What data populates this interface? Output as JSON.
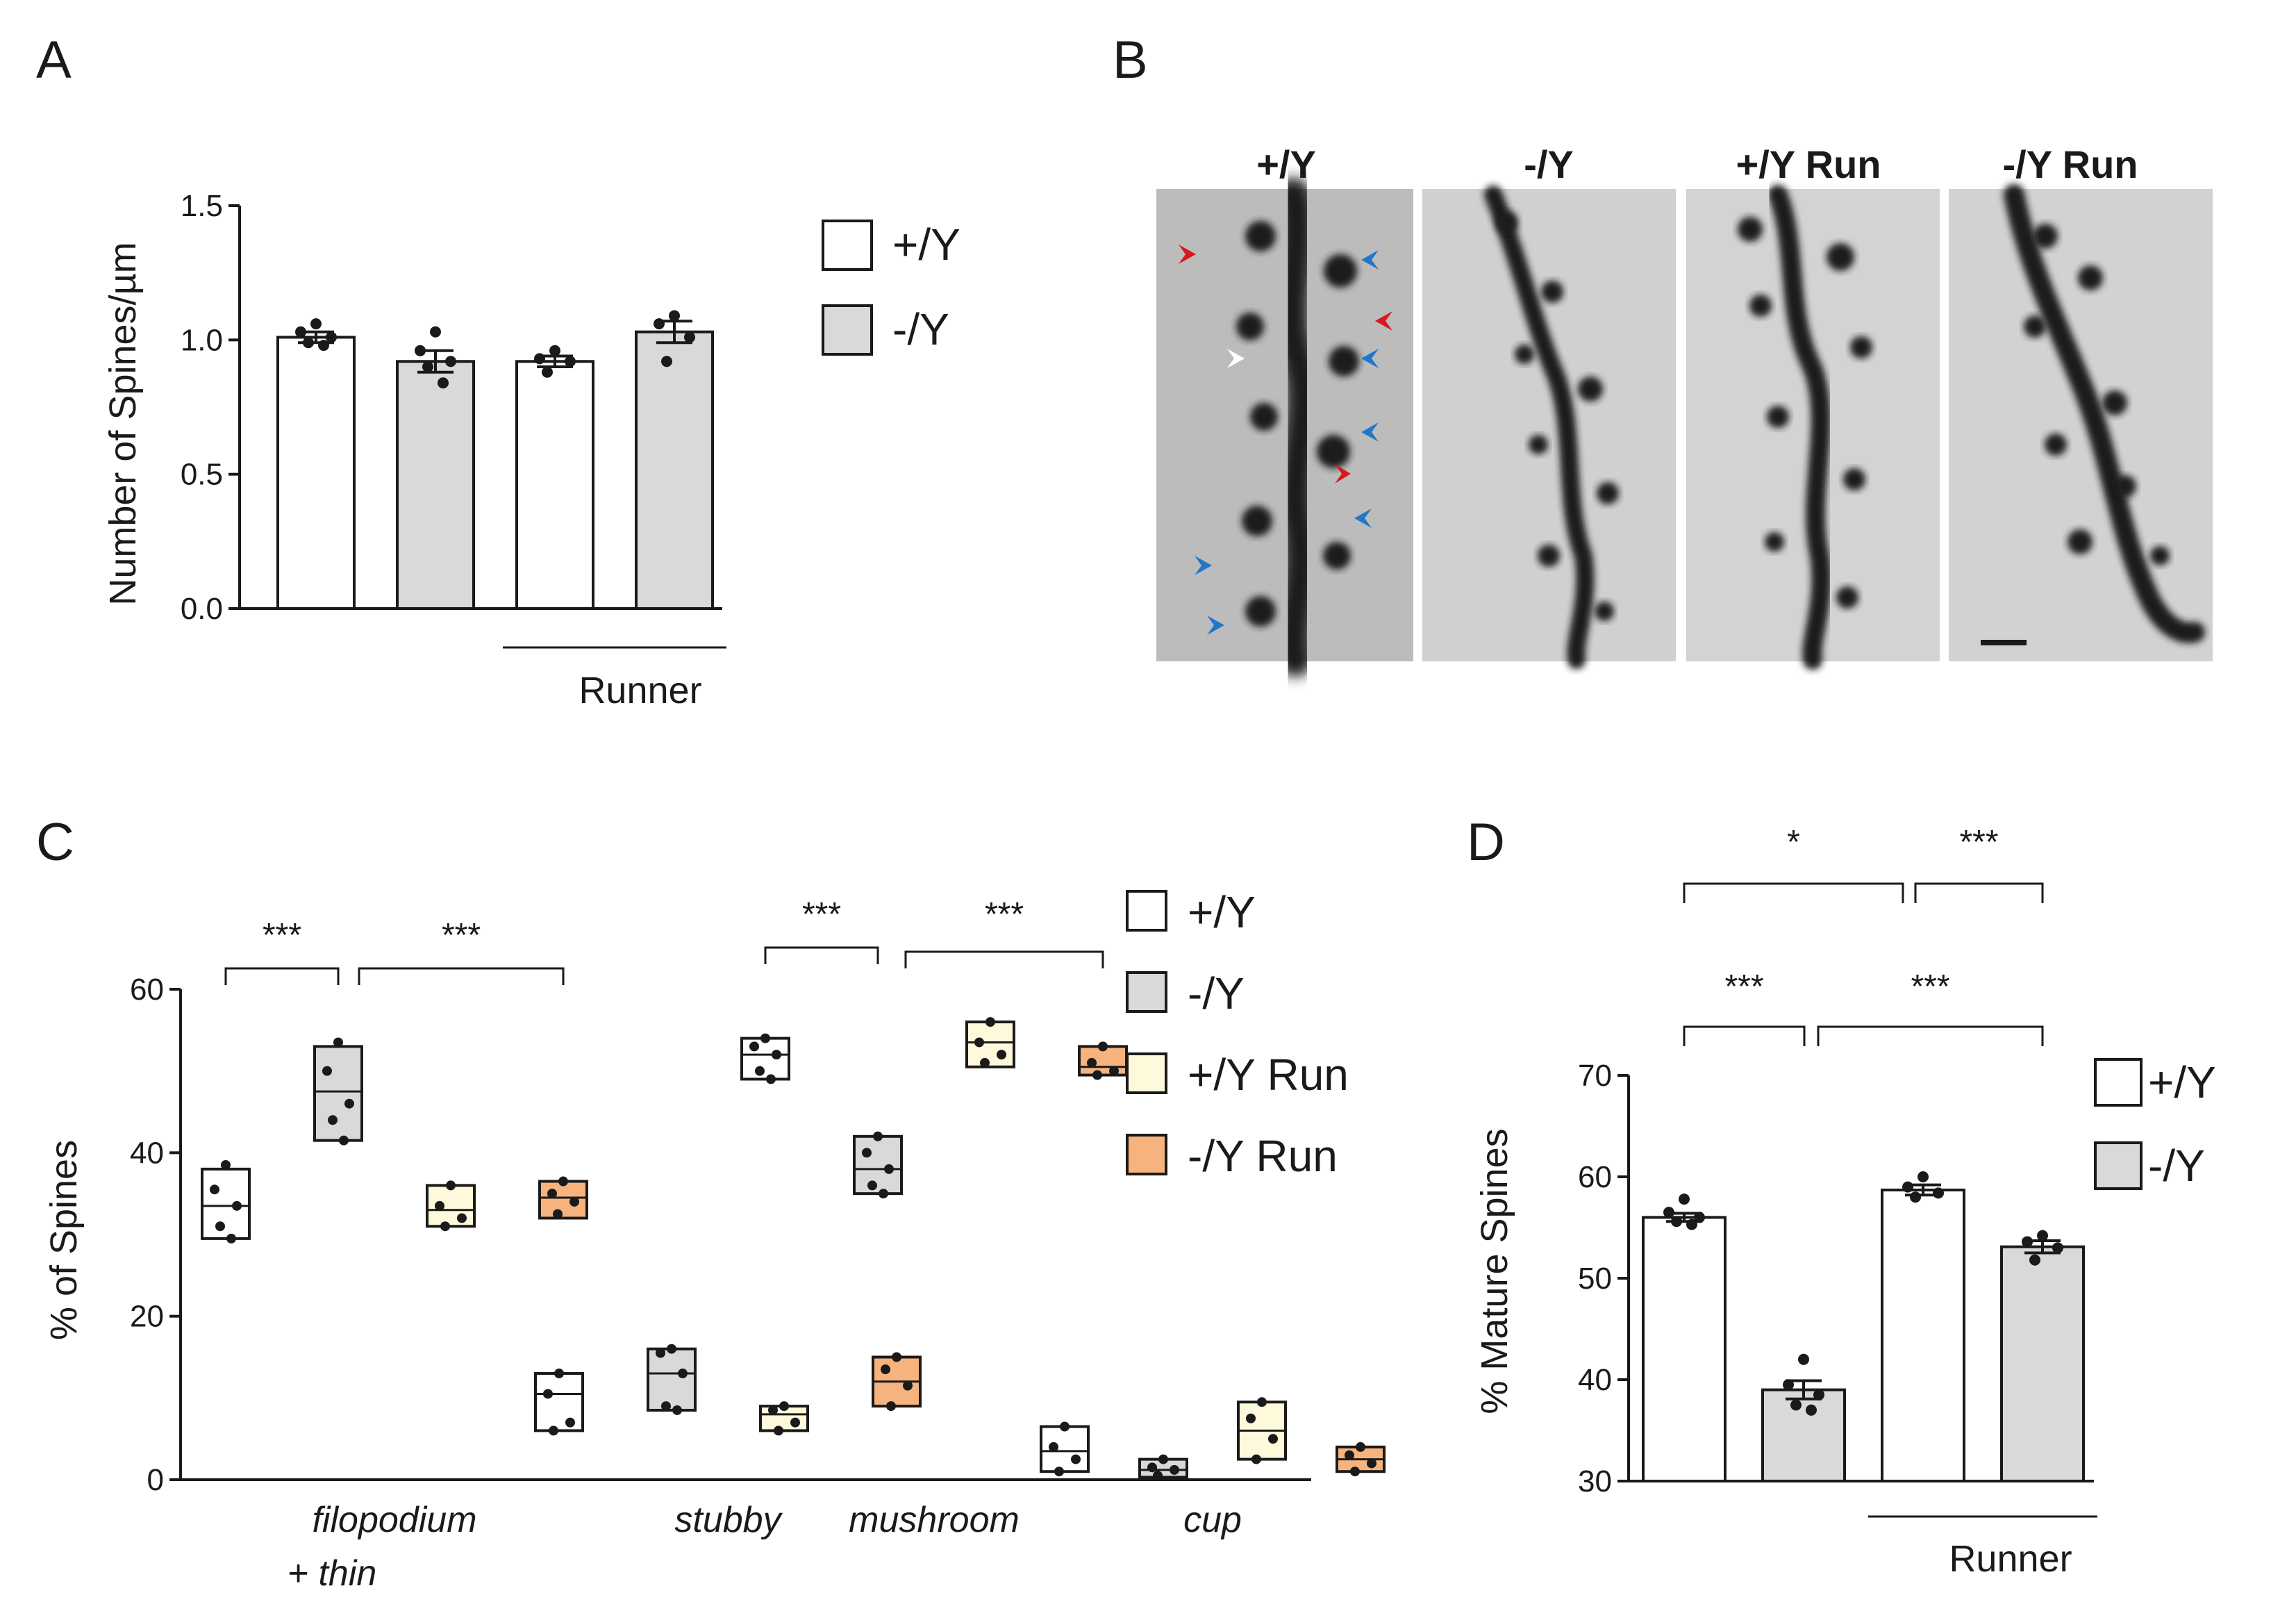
{
  "panels": {
    "a": "A",
    "b": "B",
    "c": "C",
    "d": "D"
  },
  "colors": {
    "wt": "#ffffff",
    "ko": "#d9d9d9",
    "wt_run": "#fff9db",
    "ko_run": "#f6b37e",
    "stroke": "#1a1a1a",
    "arrow_red": "#d71920",
    "arrow_blue": "#1f78c8",
    "arrow_white": "#ffffff"
  },
  "legend_ab": [
    "+/Y",
    "-/Y"
  ],
  "legend_c": [
    "+/Y",
    "-/Y",
    "+/Y Run",
    "-/Y Run"
  ],
  "legend_d": [
    "+/Y",
    "-/Y"
  ],
  "panel_b": {
    "titles": [
      "+/Y",
      "-/Y",
      "+/Y Run",
      "-/Y Run"
    ]
  },
  "chart_data": [
    {
      "panel": "A",
      "type": "bar",
      "ylabel": "Number of Spines/µm",
      "ylim": [
        0,
        1.5
      ],
      "yticks": [
        "0.0",
        "0.5",
        "1.0",
        "1.5"
      ],
      "group_label": "Runner",
      "series": [
        {
          "name": "+/Y",
          "values": [
            1.01
          ],
          "points": [
            1.06,
            1.03,
            1.01,
            0.99,
            0.98
          ]
        },
        {
          "name": "-/Y",
          "values": [
            0.92
          ],
          "points": [
            1.03,
            0.96,
            0.92,
            0.9,
            0.84
          ]
        },
        {
          "name": "+/Y",
          "values": [
            0.92
          ],
          "points": [
            0.96,
            0.93,
            0.92,
            0.88
          ]
        },
        {
          "name": "-/Y",
          "values": [
            1.03
          ],
          "points": [
            1.09,
            1.06,
            1.01,
            0.92
          ]
        }
      ],
      "sem": [
        0.02,
        0.04,
        0.02,
        0.04
      ]
    },
    {
      "panel": "C",
      "type": "box",
      "ylabel": "% of Spines",
      "ylim": [
        0,
        60
      ],
      "yticks": [
        "0",
        "20",
        "40",
        "60"
      ],
      "categories": [
        "filopodium",
        "stubby",
        "mushroom",
        "cup"
      ],
      "category_suffix": "+ thin",
      "series": [
        {
          "name": "+/Y",
          "boxes": [
            [
              29.5,
              33.5,
              38
            ],
            [
              6,
              10.5,
              13
            ],
            [
              49,
              52,
              54
            ],
            [
              1,
              3.5,
              6.5
            ]
          ],
          "points": [
            [
              38.5,
              35.5,
              33.5,
              31,
              29.5
            ],
            [
              13,
              10.5,
              7,
              6
            ],
            [
              54,
              53,
              52,
              50,
              49
            ],
            [
              6.5,
              4,
              2.5,
              1
            ]
          ]
        },
        {
          "name": "-/Y",
          "boxes": [
            [
              41.5,
              47.5,
              53
            ],
            [
              8.5,
              13,
              16
            ],
            [
              35,
              38,
              42
            ],
            [
              0.3,
              1.2,
              2.5
            ]
          ],
          "points": [
            [
              53.5,
              50,
              46,
              44,
              41.5
            ],
            [
              16,
              15.5,
              13,
              9,
              8.5
            ],
            [
              42,
              40,
              38,
              36,
              35
            ],
            [
              2.5,
              1.5,
              1.2,
              0.5
            ]
          ]
        },
        {
          "name": "+/Y Run",
          "boxes": [
            [
              31,
              33,
              36
            ],
            [
              6,
              8,
              9
            ],
            [
              50.5,
              53.5,
              56
            ],
            [
              2.5,
              6,
              9.5
            ]
          ],
          "points": [
            [
              36,
              33.5,
              32,
              31
            ],
            [
              9,
              8.5,
              7,
              6
            ],
            [
              56,
              53.5,
              52,
              51
            ],
            [
              9.5,
              7.5,
              5,
              2.5
            ]
          ]
        },
        {
          "name": "-/Y Run",
          "boxes": [
            [
              32,
              34.5,
              36.5
            ],
            [
              9,
              12,
              15
            ],
            [
              49.5,
              50.5,
              53
            ],
            [
              1,
              2.5,
              4
            ]
          ],
          "points": [
            [
              36.5,
              35,
              34,
              32.5
            ],
            [
              15,
              13.5,
              11.5,
              9
            ],
            [
              53,
              51,
              50,
              49.5
            ],
            [
              4,
              3,
              2,
              1
            ]
          ]
        }
      ],
      "significance": [
        {
          "label": "***",
          "from": "filopodium +/Y",
          "to": "filopodium -/Y"
        },
        {
          "label": "***",
          "from": "filopodium -/Y",
          "to": "filopodium -/Y Run"
        },
        {
          "label": "***",
          "from": "mushroom +/Y",
          "to": "mushroom -/Y"
        },
        {
          "label": "***",
          "from": "mushroom -/Y",
          "to": "mushroom -/Y Run"
        }
      ]
    },
    {
      "panel": "D",
      "type": "bar",
      "ylabel": "% Mature Spines",
      "ylim": [
        30,
        70
      ],
      "yticks": [
        "30",
        "40",
        "50",
        "60",
        "70"
      ],
      "group_label": "Runner",
      "series": [
        {
          "name": "+/Y",
          "values": [
            56
          ],
          "points": [
            57.8,
            56.5,
            56,
            55.6,
            55.3
          ]
        },
        {
          "name": "-/Y",
          "values": [
            39
          ],
          "points": [
            42,
            39.5,
            38.5,
            37.5,
            37
          ]
        },
        {
          "name": "+/Y",
          "values": [
            58.7
          ],
          "points": [
            60,
            59,
            58.4,
            58
          ]
        },
        {
          "name": "-/Y",
          "values": [
            53.1
          ],
          "points": [
            54.2,
            53.6,
            53,
            51.8
          ]
        }
      ],
      "sem": [
        0.4,
        0.9,
        0.5,
        0.6
      ],
      "significance": [
        {
          "label": "*",
          "from": 0,
          "to": 2
        },
        {
          "label": "***",
          "from": 2,
          "to": 3
        },
        {
          "label": "***",
          "from": 0,
          "to": 1
        },
        {
          "label": "***",
          "from": 1,
          "to": 3
        }
      ]
    }
  ]
}
